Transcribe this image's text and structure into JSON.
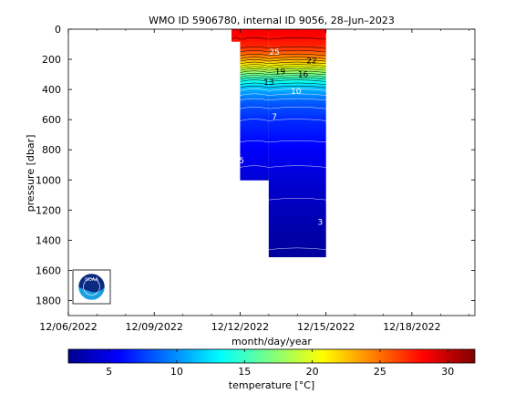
{
  "chart_data": {
    "type": "heatmap",
    "title": "WMO ID 5906780, internal ID 9056, 28–Jun–2023",
    "xlabel": "month/day/year",
    "ylabel": "pressure [dbar]",
    "x_ticks": [
      {
        "day": 0,
        "label": "12/06/2022"
      },
      {
        "day": 3,
        "label": "12/09/2022"
      },
      {
        "day": 6,
        "label": "12/12/2022"
      },
      {
        "day": 9,
        "label": "12/15/2022"
      },
      {
        "day": 12,
        "label": "12/18/2022"
      }
    ],
    "xlim_days_from_first_tick": [
      0,
      14.2
    ],
    "ylim": [
      0,
      1900
    ],
    "y_reversed": true,
    "y_ticks": [
      0,
      200,
      400,
      600,
      800,
      1000,
      1200,
      1400,
      1600,
      1800
    ],
    "colorbar": {
      "label": "temperature [°C]",
      "range": [
        2,
        32
      ],
      "ticks": [
        5,
        10,
        15,
        20,
        25,
        30
      ],
      "colormap": "jet"
    },
    "profiles": [
      {
        "start_day": 5.7,
        "end_day": 6.0,
        "max_pressure": 80
      },
      {
        "start_day": 6.0,
        "end_day": 7.0,
        "max_pressure": 1000
      },
      {
        "start_day": 7.0,
        "end_day": 9.0,
        "max_pressure": 1510
      }
    ],
    "temperature_profile": [
      {
        "p": 0,
        "t": 28.5
      },
      {
        "p": 60,
        "t": 28.0
      },
      {
        "p": 120,
        "t": 27.0
      },
      {
        "p": 180,
        "t": 24.5
      },
      {
        "p": 230,
        "t": 21.5
      },
      {
        "p": 280,
        "t": 18.0
      },
      {
        "p": 340,
        "t": 14.0
      },
      {
        "p": 400,
        "t": 11.0
      },
      {
        "p": 480,
        "t": 8.5
      },
      {
        "p": 600,
        "t": 7.0
      },
      {
        "p": 800,
        "t": 5.6
      },
      {
        "p": 1000,
        "t": 4.5
      },
      {
        "p": 1200,
        "t": 3.7
      },
      {
        "p": 1400,
        "t": 3.1
      },
      {
        "p": 1510,
        "t": 2.9
      }
    ],
    "contour_labels": [
      {
        "day": 7.2,
        "p": 150,
        "text": "25",
        "color": "#ffffff"
      },
      {
        "day": 8.5,
        "p": 210,
        "text": "22",
        "color": "#000000"
      },
      {
        "day": 7.4,
        "p": 280,
        "text": "19",
        "color": "#000000"
      },
      {
        "day": 8.2,
        "p": 300,
        "text": "16",
        "color": "#000000"
      },
      {
        "day": 7.0,
        "p": 350,
        "text": "13",
        "color": "#000000"
      },
      {
        "day": 7.95,
        "p": 410,
        "text": "10",
        "color": "#ffffff"
      },
      {
        "day": 7.2,
        "p": 580,
        "text": "7",
        "color": "#ffffff"
      },
      {
        "day": 6.05,
        "p": 870,
        "text": "5",
        "color": "#ffffff"
      },
      {
        "day": 8.8,
        "p": 1280,
        "text": "3",
        "color": "#ffffff"
      }
    ],
    "logo": "noaa-logo"
  }
}
